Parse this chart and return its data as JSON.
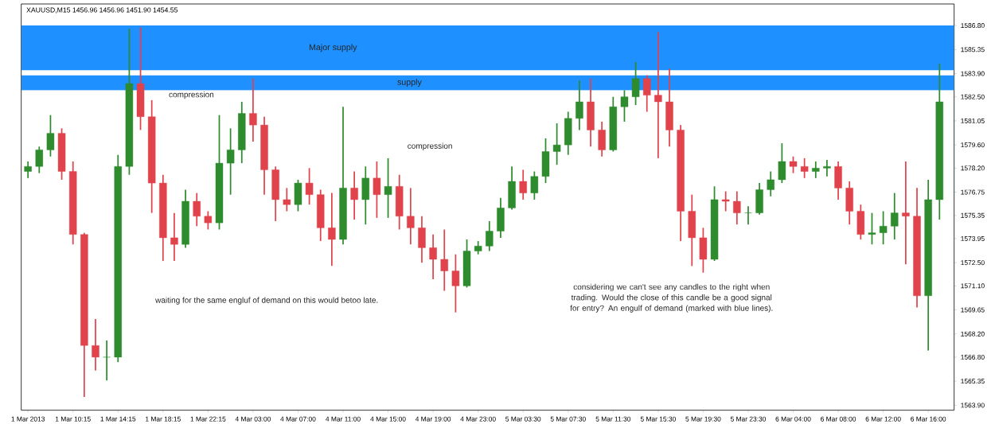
{
  "chart_data": {
    "type": "candlestick",
    "title": "XAUUSD,M15  1456.96 1456.96 1451.90 1454.55",
    "categories": [
      "1 Mar 2013",
      null,
      null,
      null,
      "1 Mar 10:15",
      null,
      null,
      null,
      "1 Mar 14:15",
      null,
      null,
      null,
      "1 Mar 18:15",
      null,
      null,
      null,
      "1 Mar 22:15",
      null,
      null,
      null,
      "4 Mar 03:00",
      null,
      null,
      null,
      "4 Mar 07:00",
      null,
      null,
      null,
      "4 Mar 11:00",
      null,
      null,
      null,
      "4 Mar 15:00",
      null,
      null,
      null,
      "4 Mar 19:00",
      null,
      null,
      null,
      "4 Mar 23:00",
      null,
      null,
      null,
      "5 Mar 03:30",
      null,
      null,
      null,
      "5 Mar 07:30",
      null,
      null,
      null,
      "5 Mar 11:30",
      null,
      null,
      null,
      "5 Mar 15:30",
      null,
      null,
      null,
      "5 Mar 19:30",
      null,
      null,
      null,
      "5 Mar 23:30",
      null,
      null,
      null,
      "6 Mar 04:00",
      null,
      null,
      null,
      "6 Mar 08:00",
      null,
      null,
      null,
      "6 Mar 12:00",
      null,
      null,
      null,
      "6 Mar 16:00",
      null
    ],
    "ohlc": [
      [
        1578.0,
        1578.6,
        1577.6,
        1578.3
      ],
      [
        1578.3,
        1579.5,
        1577.9,
        1579.3
      ],
      [
        1579.3,
        1581.4,
        1578.9,
        1580.3
      ],
      [
        1580.3,
        1580.6,
        1577.5,
        1578.0
      ],
      [
        1578.0,
        1578.6,
        1573.6,
        1574.2
      ],
      [
        1574.2,
        1574.3,
        1564.4,
        1567.5
      ],
      [
        1567.5,
        1569.1,
        1566.0,
        1566.8
      ],
      [
        1566.8,
        1567.8,
        1565.4,
        1566.8
      ],
      [
        1566.8,
        1579.0,
        1566.5,
        1578.3
      ],
      [
        1578.3,
        1586.6,
        1577.8,
        1583.3
      ],
      [
        1583.3,
        1586.7,
        1580.5,
        1581.3
      ],
      [
        1581.3,
        1582.3,
        1575.5,
        1577.3
      ],
      [
        1577.3,
        1577.8,
        1572.6,
        1574.0
      ],
      [
        1574.0,
        1575.5,
        1572.6,
        1573.6
      ],
      [
        1573.6,
        1576.9,
        1573.4,
        1576.2
      ],
      [
        1576.2,
        1576.7,
        1574.7,
        1575.3
      ],
      [
        1575.3,
        1575.6,
        1574.5,
        1574.9
      ],
      [
        1574.9,
        1581.4,
        1574.5,
        1578.5
      ],
      [
        1578.5,
        1580.6,
        1576.6,
        1579.3
      ],
      [
        1579.3,
        1582.2,
        1578.5,
        1581.5
      ],
      [
        1581.5,
        1583.6,
        1579.8,
        1580.8
      ],
      [
        1580.8,
        1581.3,
        1576.6,
        1578.1
      ],
      [
        1578.1,
        1578.3,
        1575.0,
        1576.3
      ],
      [
        1576.3,
        1577.0,
        1575.6,
        1576.0
      ],
      [
        1576.0,
        1577.5,
        1575.6,
        1577.3
      ],
      [
        1577.3,
        1578.2,
        1576.0,
        1576.6
      ],
      [
        1576.6,
        1576.9,
        1573.8,
        1574.6
      ],
      [
        1574.6,
        1576.7,
        1572.3,
        1573.9
      ],
      [
        1573.9,
        1581.9,
        1573.6,
        1577.0
      ],
      [
        1577.0,
        1578.0,
        1575.1,
        1576.3
      ],
      [
        1576.3,
        1578.3,
        1574.8,
        1577.6
      ],
      [
        1577.6,
        1578.6,
        1575.2,
        1576.6
      ],
      [
        1576.6,
        1578.8,
        1575.2,
        1577.1
      ],
      [
        1577.1,
        1577.8,
        1574.5,
        1575.3
      ],
      [
        1575.3,
        1577.0,
        1573.6,
        1574.6
      ],
      [
        1574.6,
        1575.3,
        1572.5,
        1573.4
      ],
      [
        1573.4,
        1574.2,
        1571.5,
        1572.7
      ],
      [
        1572.7,
        1574.5,
        1570.8,
        1572.0
      ],
      [
        1572.0,
        1573.0,
        1569.5,
        1571.1
      ],
      [
        1571.1,
        1573.9,
        1571.0,
        1573.2
      ],
      [
        1573.2,
        1573.8,
        1573.0,
        1573.5
      ],
      [
        1573.5,
        1575.0,
        1573.2,
        1574.4
      ],
      [
        1574.4,
        1576.4,
        1574.0,
        1575.8
      ],
      [
        1575.8,
        1578.3,
        1575.7,
        1577.4
      ],
      [
        1577.4,
        1578.1,
        1576.3,
        1576.7
      ],
      [
        1576.7,
        1578.0,
        1576.3,
        1577.7
      ],
      [
        1577.7,
        1580.0,
        1577.3,
        1579.2
      ],
      [
        1579.2,
        1580.9,
        1578.4,
        1579.6
      ],
      [
        1579.6,
        1581.6,
        1579.0,
        1581.2
      ],
      [
        1581.2,
        1583.5,
        1580.5,
        1582.2
      ],
      [
        1582.2,
        1583.6,
        1579.5,
        1580.5
      ],
      [
        1580.5,
        1581.0,
        1578.9,
        1579.3
      ],
      [
        1579.3,
        1582.5,
        1579.2,
        1581.9
      ],
      [
        1581.9,
        1582.9,
        1581.0,
        1582.5
      ],
      [
        1582.5,
        1584.6,
        1582.0,
        1583.6
      ],
      [
        1583.6,
        1583.8,
        1581.6,
        1582.6
      ],
      [
        1582.6,
        1586.4,
        1578.8,
        1582.2
      ],
      [
        1582.2,
        1584.2,
        1579.5,
        1580.5
      ],
      [
        1580.5,
        1580.8,
        1573.8,
        1575.6
      ],
      [
        1575.6,
        1576.6,
        1572.3,
        1574.0
      ],
      [
        1574.0,
        1574.6,
        1571.9,
        1572.7
      ],
      [
        1572.7,
        1577.1,
        1572.6,
        1576.3
      ],
      [
        1576.3,
        1576.8,
        1575.6,
        1576.2
      ],
      [
        1576.2,
        1576.8,
        1574.8,
        1575.5
      ],
      [
        1575.5,
        1575.9,
        1574.8,
        1575.5
      ],
      [
        1575.5,
        1577.3,
        1575.4,
        1576.9
      ],
      [
        1576.9,
        1578.0,
        1576.5,
        1577.5
      ],
      [
        1577.5,
        1579.7,
        1577.3,
        1578.6
      ],
      [
        1578.6,
        1578.9,
        1577.9,
        1578.3
      ],
      [
        1578.3,
        1578.8,
        1577.6,
        1578.0
      ],
      [
        1578.0,
        1578.6,
        1577.6,
        1578.2
      ],
      [
        1578.2,
        1578.7,
        1577.7,
        1578.3
      ],
      [
        1578.3,
        1578.6,
        1576.3,
        1577.0
      ],
      [
        1577.0,
        1577.4,
        1574.8,
        1575.6
      ],
      [
        1575.6,
        1576.0,
        1573.9,
        1574.2
      ],
      [
        1574.2,
        1575.5,
        1573.6,
        1574.3
      ],
      [
        1574.3,
        1575.6,
        1573.6,
        1574.7
      ],
      [
        1574.7,
        1576.7,
        1573.9,
        1575.5
      ],
      [
        1575.5,
        1578.6,
        1572.4,
        1575.3
      ],
      [
        1575.3,
        1577.0,
        1569.8,
        1570.5
      ],
      [
        1570.5,
        1577.5,
        1567.2,
        1576.3
      ],
      [
        1576.3,
        1584.5,
        1575.1,
        1582.2
      ]
    ],
    "ylim": [
      1563.6,
      1588.1
    ],
    "yticks": [
      {
        "value": 1586.8,
        "label": "1586.80"
      },
      {
        "value": 1585.35,
        "label": "1585.35"
      },
      {
        "value": 1583.9,
        "label": "1583.90"
      },
      {
        "value": 1582.5,
        "label": "1582.50"
      },
      {
        "value": 1581.05,
        "label": "1581.05"
      },
      {
        "value": 1579.6,
        "label": "1579.60"
      },
      {
        "value": 1578.2,
        "label": "1578.20"
      },
      {
        "value": 1576.75,
        "label": "1576.75"
      },
      {
        "value": 1575.35,
        "label": "1575.35"
      },
      {
        "value": 1573.95,
        "label": "1573.95"
      },
      {
        "value": 1572.5,
        "label": "1572.50"
      },
      {
        "value": 1571.1,
        "label": "1571.10"
      },
      {
        "value": 1569.65,
        "label": "1569.65"
      },
      {
        "value": 1568.2,
        "label": "1568.20"
      },
      {
        "value": 1566.8,
        "label": "1566.80"
      },
      {
        "value": 1565.35,
        "label": "1565.35"
      },
      {
        "value": 1563.9,
        "label": "1563.90"
      }
    ],
    "bands": [
      {
        "axis": "y",
        "from": 1584.1,
        "to": 1586.8,
        "label": "Major supply",
        "color": "#1e90ff"
      },
      {
        "axis": "y",
        "from": 1582.9,
        "to": 1583.8,
        "label": "supply",
        "color": "#1e90ff"
      }
    ],
    "annotations": [
      "compression",
      "compression",
      "waiting for the same engluf of demand on this would betoo late.",
      "considering we can't see any candles to the right when trading. Would the close of this candle be a good signal for entry? An engulf of demand (marked with blue lines)."
    ],
    "grid": false
  }
}
